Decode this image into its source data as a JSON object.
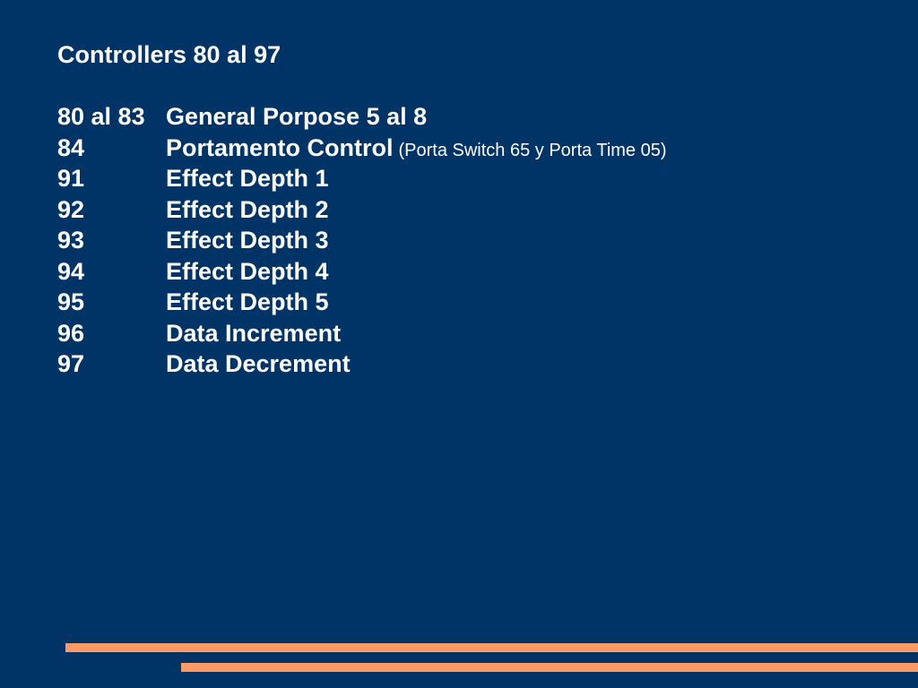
{
  "slide": {
    "title": "Controllers 80 al 97",
    "colors": {
      "background": "#003366",
      "text": "#ffffff",
      "accent": "#ff9966"
    },
    "rows": [
      {
        "number": "80 al 83",
        "name": "General Porpose 5 al 8",
        "note": ""
      },
      {
        "number": "84",
        "name": "Portamento Control",
        "note": "(Porta Switch 65 y Porta Time 05)"
      },
      {
        "number": "91",
        "name": "Effect Depth 1",
        "note": ""
      },
      {
        "number": "92",
        "name": "Effect Depth 2",
        "note": ""
      },
      {
        "number": "93",
        "name": "Effect Depth 3",
        "note": ""
      },
      {
        "number": "94",
        "name": "Effect Depth 4",
        "note": ""
      },
      {
        "number": "95",
        "name": "Effect Depth 5",
        "note": ""
      },
      {
        "number": "96",
        "name": "Data Increment",
        "note": ""
      },
      {
        "number": "97",
        "name": "Data Decrement",
        "note": ""
      }
    ]
  }
}
